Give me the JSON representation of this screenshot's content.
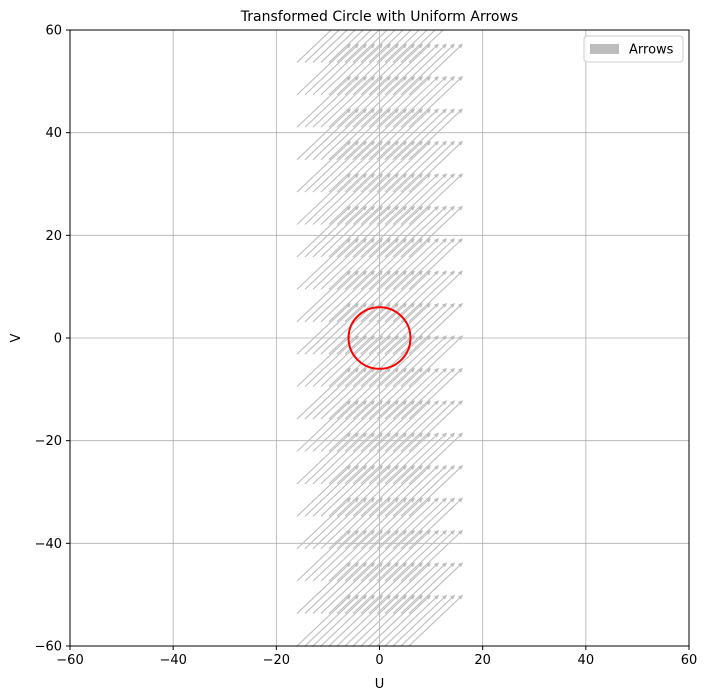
{
  "chart_data": {
    "type": "quiver",
    "title": "Transformed Circle with Uniform Arrows",
    "xlabel": "U",
    "ylabel": "V",
    "xlim": [
      -60,
      60
    ],
    "ylim": [
      -60,
      60
    ],
    "grid": true,
    "legend_position": "upper right",
    "x_ticks": [
      -60,
      -40,
      -20,
      0,
      20,
      40,
      60
    ],
    "y_ticks": [
      -60,
      -40,
      -20,
      0,
      20,
      40,
      60
    ],
    "x_tick_labels": [
      "−60",
      "−40",
      "−20",
      "0",
      "20",
      "40",
      "60"
    ],
    "y_tick_labels": [
      "−60",
      "−40",
      "−20",
      "0",
      "20",
      "40",
      "60"
    ],
    "series": [
      {
        "name": "",
        "kind": "circle",
        "color": "#ff0000",
        "center": [
          0,
          0
        ],
        "radius": 6
      },
      {
        "name": "Arrows",
        "kind": "arrows",
        "color": "#bdbdbd",
        "tail_u_range": [
          -16,
          5.7
        ],
        "tail_v_range": [
          -60,
          60
        ],
        "arrow_vector": [
          10.5,
          10
        ],
        "rows": 20,
        "arrows_per_row": 15
      }
    ]
  }
}
